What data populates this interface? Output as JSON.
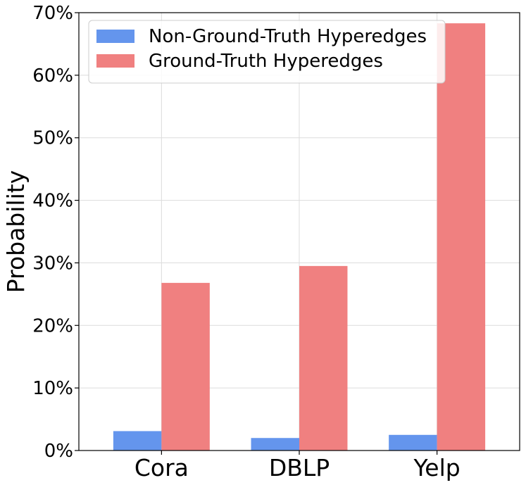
{
  "chart_data": {
    "type": "bar",
    "categories": [
      "Cora",
      "DBLP",
      "Yelp"
    ],
    "series": [
      {
        "name": "Non-Ground-Truth Hyperedges",
        "values": [
          3.1,
          2.0,
          2.5
        ],
        "color": "#6495ED"
      },
      {
        "name": "Ground-Truth Hyperedges",
        "values": [
          26.8,
          29.5,
          68.3
        ],
        "color": "#F08080"
      }
    ],
    "title": "",
    "xlabel": "",
    "ylabel": "Probability",
    "ylim": [
      0,
      70
    ],
    "yticks": [
      0,
      10,
      20,
      30,
      40,
      50,
      60,
      70
    ],
    "ytick_suffix": "%",
    "grid": true,
    "legend_position": "top-left"
  }
}
